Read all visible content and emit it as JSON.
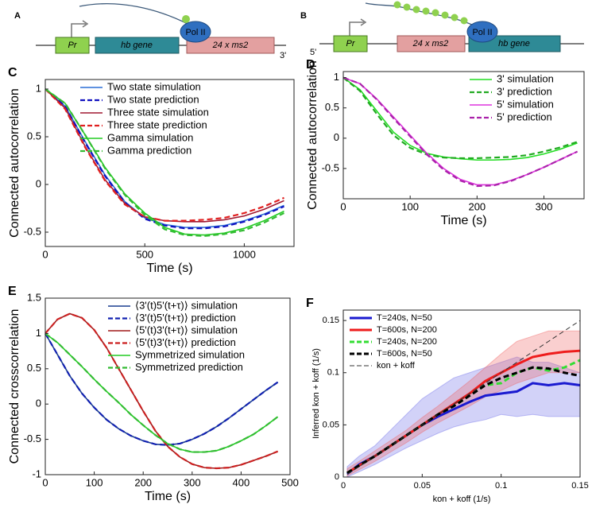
{
  "diagrams": [
    {
      "label": "A",
      "promoter": "Pr",
      "gene": "hb gene",
      "reporter": "24 x ms2",
      "polymerase": "Pol II",
      "end": "3'"
    },
    {
      "label": "B",
      "promoter": "Pr",
      "gene": "hb gene",
      "reporter": "24 x ms2",
      "polymerase": "Pol II",
      "end": "5'"
    }
  ],
  "chart_data": [
    {
      "type": "line",
      "label": "C",
      "xlabel": "Time (s)",
      "ylabel": "Connected autocorrelation",
      "legend": "upper right",
      "xlim": [
        0,
        1250
      ],
      "ylim": [
        -0.65,
        1.1
      ],
      "xticks": [
        0,
        500,
        1000
      ],
      "yticks": [
        -0.5,
        0,
        0.5,
        1
      ],
      "x": [
        0,
        100,
        200,
        300,
        400,
        500,
        600,
        700,
        800,
        900,
        1000,
        1100,
        1200
      ],
      "series": [
        {
          "name": "Two state simulation",
          "color": "#2a6fd6",
          "dashed": false,
          "values": [
            1,
            0.82,
            0.45,
            0.1,
            -0.18,
            -0.35,
            -0.42,
            -0.45,
            -0.45,
            -0.43,
            -0.38,
            -0.31,
            -0.22
          ]
        },
        {
          "name": "Two state prediction",
          "color": "#1010c0",
          "dashed": true,
          "values": [
            1,
            0.82,
            0.44,
            0.09,
            -0.19,
            -0.36,
            -0.43,
            -0.46,
            -0.46,
            -0.44,
            -0.39,
            -0.32,
            -0.23
          ]
        },
        {
          "name": "Three state simulation",
          "color": "#a01830",
          "dashed": false,
          "values": [
            1,
            0.8,
            0.4,
            0.05,
            -0.2,
            -0.34,
            -0.38,
            -0.39,
            -0.39,
            -0.37,
            -0.33,
            -0.26,
            -0.17
          ]
        },
        {
          "name": "Three state prediction",
          "color": "#e02020",
          "dashed": true,
          "values": [
            1,
            0.79,
            0.39,
            0.04,
            -0.21,
            -0.34,
            -0.38,
            -0.38,
            -0.37,
            -0.35,
            -0.3,
            -0.23,
            -0.14
          ]
        },
        {
          "name": "Gamma simulation",
          "color": "#22cc22",
          "dashed": false,
          "values": [
            1,
            0.85,
            0.52,
            0.18,
            -0.1,
            -0.3,
            -0.45,
            -0.52,
            -0.53,
            -0.51,
            -0.46,
            -0.38,
            -0.28
          ]
        },
        {
          "name": "Gamma prediction",
          "color": "#33bb33",
          "dashed": true,
          "values": [
            1,
            0.85,
            0.52,
            0.17,
            -0.11,
            -0.32,
            -0.47,
            -0.53,
            -0.54,
            -0.52,
            -0.48,
            -0.4,
            -0.3
          ]
        }
      ]
    },
    {
      "type": "line",
      "label": "D",
      "xlabel": "Time (s)",
      "ylabel": "Connected autocorrelation",
      "legend": "upper right",
      "xlim": [
        0,
        360
      ],
      "ylim": [
        -1,
        1.1
      ],
      "xticks": [
        0,
        100,
        200,
        300
      ],
      "yticks": [
        -0.5,
        0,
        0.5,
        1
      ],
      "x": [
        0,
        25,
        50,
        75,
        100,
        125,
        150,
        175,
        200,
        225,
        250,
        275,
        300,
        325,
        350
      ],
      "series": [
        {
          "name": "3' simulation",
          "color": "#22dd22",
          "dashed": false,
          "values": [
            1,
            0.8,
            0.45,
            0.1,
            -0.12,
            -0.25,
            -0.31,
            -0.34,
            -0.36,
            -0.36,
            -0.35,
            -0.32,
            -0.26,
            -0.18,
            -0.08
          ]
        },
        {
          "name": "3' prediction",
          "color": "#22aa22",
          "dashed": true,
          "values": [
            1,
            0.78,
            0.4,
            0.05,
            -0.16,
            -0.27,
            -0.32,
            -0.33,
            -0.33,
            -0.32,
            -0.31,
            -0.28,
            -0.22,
            -0.15,
            -0.06
          ]
        },
        {
          "name": "5' simulation",
          "color": "#dd33dd",
          "dashed": false,
          "values": [
            1,
            0.9,
            0.65,
            0.35,
            0.05,
            -0.25,
            -0.5,
            -0.68,
            -0.77,
            -0.77,
            -0.7,
            -0.6,
            -0.48,
            -0.35,
            -0.22
          ]
        },
        {
          "name": "5' prediction",
          "color": "#aa22aa",
          "dashed": true,
          "values": [
            1,
            0.9,
            0.64,
            0.33,
            0.03,
            -0.27,
            -0.52,
            -0.7,
            -0.79,
            -0.78,
            -0.71,
            -0.6,
            -0.48,
            -0.35,
            -0.22
          ]
        }
      ]
    },
    {
      "type": "line",
      "label": "E",
      "xlabel": "Time (s)",
      "ylabel": "Connected crosscorrelation",
      "legend": "upper right",
      "xlim": [
        0,
        500
      ],
      "ylim": [
        -1,
        1.5
      ],
      "xticks": [
        0,
        100,
        200,
        300,
        400,
        500
      ],
      "yticks": [
        -1,
        -0.5,
        0,
        0.5,
        1,
        1.5
      ],
      "x": [
        0,
        25,
        50,
        75,
        100,
        125,
        150,
        175,
        200,
        225,
        250,
        275,
        300,
        325,
        350,
        375,
        400,
        425,
        450,
        475
      ],
      "series": [
        {
          "name": "⟨3'(t)5'(t+τ)⟩ simulation",
          "color": "#1a3d8f",
          "dashed": false,
          "values": [
            1,
            0.7,
            0.4,
            0.15,
            -0.05,
            -0.22,
            -0.35,
            -0.45,
            -0.52,
            -0.57,
            -0.58,
            -0.56,
            -0.5,
            -0.42,
            -0.32,
            -0.2,
            -0.07,
            0.06,
            0.19,
            0.31
          ]
        },
        {
          "name": "⟨3'(t)5'(t+τ)⟩ prediction",
          "color": "#1020b0",
          "dashed": true,
          "values": [
            1,
            0.7,
            0.4,
            0.15,
            -0.05,
            -0.22,
            -0.35,
            -0.45,
            -0.52,
            -0.57,
            -0.58,
            -0.56,
            -0.5,
            -0.42,
            -0.32,
            -0.2,
            -0.07,
            0.06,
            0.19,
            0.31
          ]
        },
        {
          "name": "⟨5'(t)3'(t+τ)⟩ simulation",
          "color": "#a01818",
          "dashed": false,
          "values": [
            1,
            1.2,
            1.28,
            1.22,
            1.05,
            0.8,
            0.5,
            0.2,
            -0.1,
            -0.38,
            -0.6,
            -0.75,
            -0.85,
            -0.9,
            -0.91,
            -0.9,
            -0.86,
            -0.8,
            -0.74,
            -0.67
          ]
        },
        {
          "name": "⟨5'(t)3'(t+τ)⟩ prediction",
          "color": "#cc2020",
          "dashed": true,
          "values": [
            1,
            1.2,
            1.28,
            1.22,
            1.05,
            0.8,
            0.5,
            0.2,
            -0.1,
            -0.38,
            -0.6,
            -0.75,
            -0.85,
            -0.9,
            -0.91,
            -0.9,
            -0.86,
            -0.8,
            -0.74,
            -0.67
          ]
        },
        {
          "name": "Symmetrized simulation",
          "color": "#22cc22",
          "dashed": false,
          "values": [
            1,
            0.87,
            0.7,
            0.53,
            0.35,
            0.18,
            0.02,
            -0.15,
            -0.3,
            -0.44,
            -0.56,
            -0.64,
            -0.68,
            -0.68,
            -0.66,
            -0.6,
            -0.52,
            -0.43,
            -0.31,
            -0.18
          ]
        },
        {
          "name": "Symmetrized prediction",
          "color": "#33bb33",
          "dashed": true,
          "values": [
            1,
            0.87,
            0.7,
            0.53,
            0.35,
            0.18,
            0.02,
            -0.15,
            -0.3,
            -0.44,
            -0.56,
            -0.64,
            -0.68,
            -0.68,
            -0.66,
            -0.6,
            -0.52,
            -0.43,
            -0.31,
            -0.18
          ]
        }
      ]
    },
    {
      "type": "line",
      "label": "F",
      "xlabel": "kon + koff (1/s)",
      "ylabel": "Inferred kon + koff (1/s)",
      "legend": "upper left",
      "xlim": [
        0,
        0.15
      ],
      "ylim": [
        0,
        0.16
      ],
      "xticks": [
        0,
        0.05,
        0.1,
        0.15
      ],
      "yticks": [
        0,
        0.05,
        0.1,
        0.15
      ],
      "x": [
        0.0025,
        0.01,
        0.02,
        0.03,
        0.04,
        0.05,
        0.06,
        0.07,
        0.08,
        0.09,
        0.1,
        0.11,
        0.12,
        0.13,
        0.14,
        0.15
      ],
      "bands": [
        {
          "color": "#6a6ae8",
          "upper": [
            0.01,
            0.02,
            0.03,
            0.045,
            0.06,
            0.075,
            0.085,
            0.095,
            0.1,
            0.105,
            0.11,
            0.115,
            0.11,
            0.11,
            0.105,
            0.1
          ],
          "lower": [
            0,
            0.005,
            0.012,
            0.02,
            0.028,
            0.035,
            0.042,
            0.048,
            0.052,
            0.055,
            0.06,
            0.058,
            0.06,
            0.058,
            0.058,
            0.058
          ]
        },
        {
          "color": "#f06060",
          "upper": [
            0.008,
            0.015,
            0.025,
            0.035,
            0.045,
            0.057,
            0.068,
            0.08,
            0.092,
            0.105,
            0.118,
            0.13,
            0.135,
            0.14,
            0.14,
            0.14
          ],
          "lower": [
            0.001,
            0.007,
            0.015,
            0.024,
            0.033,
            0.043,
            0.052,
            0.06,
            0.068,
            0.077,
            0.083,
            0.09,
            0.095,
            0.1,
            0.1,
            0.1
          ]
        }
      ],
      "series": [
        {
          "name": "T=240s, N=50",
          "color": "#1a1ad0",
          "dashed": false,
          "width": 3,
          "values": [
            0.003,
            0.012,
            0.02,
            0.03,
            0.04,
            0.05,
            0.058,
            0.065,
            0.072,
            0.078,
            0.08,
            0.082,
            0.09,
            0.088,
            0.09,
            0.088
          ]
        },
        {
          "name": "T=600s, N=200",
          "color": "#ee1c1c",
          "dashed": false,
          "width": 3,
          "values": [
            0.004,
            0.011,
            0.02,
            0.03,
            0.04,
            0.05,
            0.06,
            0.07,
            0.08,
            0.092,
            0.1,
            0.108,
            0.115,
            0.118,
            0.12,
            0.121
          ]
        },
        {
          "name": "T=240s, N=200",
          "color": "#33dd33",
          "dashed": true,
          "width": 3,
          "values": [
            0.004,
            0.011,
            0.02,
            0.03,
            0.04,
            0.05,
            0.06,
            0.068,
            0.078,
            0.088,
            0.09,
            0.1,
            0.105,
            0.102,
            0.105,
            0.112
          ]
        },
        {
          "name": "T=600s, N=50",
          "color": "#000000",
          "dashed": true,
          "width": 3,
          "values": [
            0.004,
            0.011,
            0.02,
            0.03,
            0.04,
            0.05,
            0.06,
            0.068,
            0.078,
            0.088,
            0.095,
            0.1,
            0.105,
            0.104,
            0.1,
            0.097
          ]
        },
        {
          "name": "kon + koff",
          "color": "#333333",
          "dashed": true,
          "width": 1,
          "values": [
            0.0025,
            0.01,
            0.02,
            0.03,
            0.04,
            0.05,
            0.06,
            0.07,
            0.08,
            0.09,
            0.1,
            0.11,
            0.12,
            0.13,
            0.14,
            0.15
          ]
        }
      ]
    }
  ]
}
